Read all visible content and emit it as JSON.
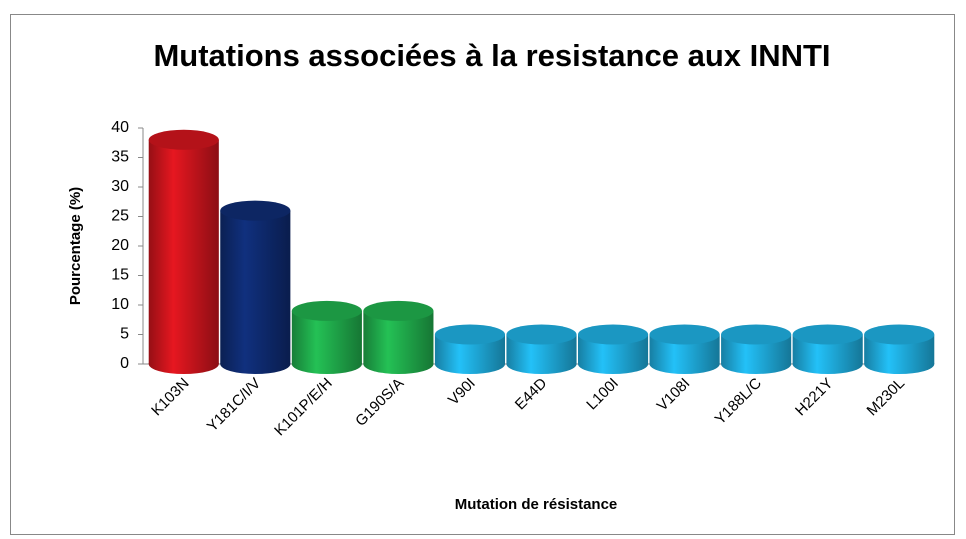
{
  "chart_data": {
    "type": "bar",
    "title": "Mutations associées à la resistance aux INNTI",
    "xlabel": "Mutation de résistance",
    "ylabel": "Pourcentage (%)",
    "categories": [
      "K103N",
      "Y181C/I/V",
      "K101P/E/H",
      "G190S/A",
      "V90I",
      "E44D",
      "L100I",
      "V108I",
      "Y188L/C",
      "H221Y",
      "M230L"
    ],
    "values": [
      38,
      26,
      9,
      9,
      5,
      5,
      5,
      5,
      5,
      5,
      5
    ],
    "colors": [
      "#c8141c",
      "#0e2a6e",
      "#1fa84a",
      "#1fa84a",
      "#1ea8d8",
      "#1ea8d8",
      "#1ea8d8",
      "#1ea8d8",
      "#1ea8d8",
      "#1ea8d8",
      "#1ea8d8"
    ],
    "ylim": [
      0,
      40
    ],
    "yticks": [
      0,
      5,
      10,
      15,
      20,
      25,
      30,
      35,
      40
    ],
    "grid": false
  }
}
